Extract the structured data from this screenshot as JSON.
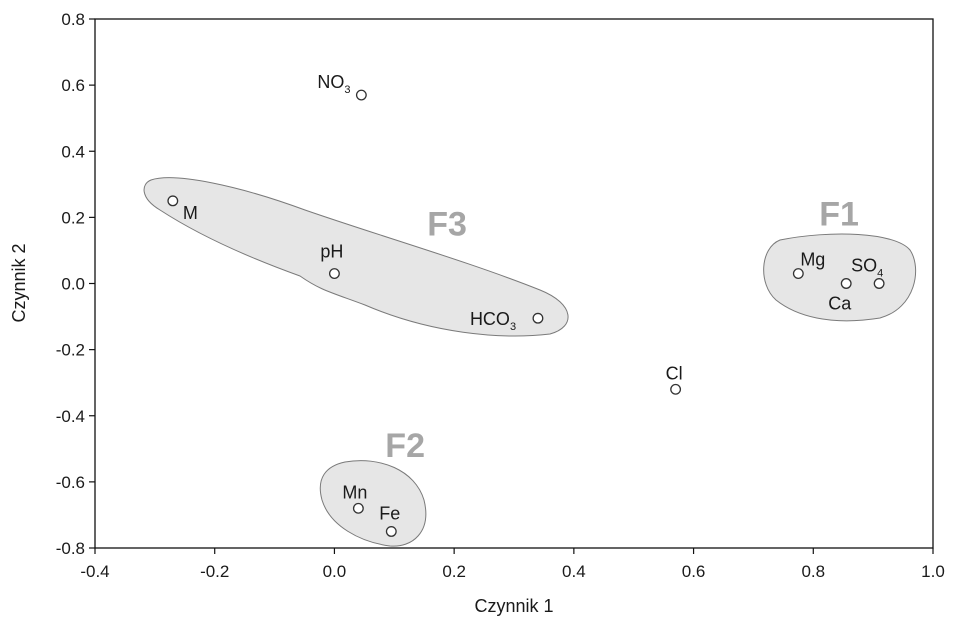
{
  "chart_data": {
    "type": "scatter",
    "xlabel": "Czynnik 1",
    "ylabel": "Czynnik 2",
    "xlim": [
      -0.4,
      1.0
    ],
    "ylim": [
      -0.8,
      0.8
    ],
    "xticks": [
      "-0.4",
      "-0.2",
      "0.0",
      "0.2",
      "0.4",
      "0.6",
      "0.8",
      "1.0"
    ],
    "yticks": [
      "0.8",
      "0.6",
      "0.4",
      "0.2",
      "0.0",
      "-0.2",
      "-0.4",
      "-0.6",
      "-0.8"
    ],
    "grid": false,
    "points": [
      {
        "label": "NO",
        "sub": "3",
        "x": 0.045,
        "y": 0.57
      },
      {
        "label": "M",
        "sub": "",
        "x": -0.27,
        "y": 0.25
      },
      {
        "label": "pH",
        "sub": "",
        "x": 0.0,
        "y": 0.03
      },
      {
        "label": "HCO",
        "sub": "3",
        "x": 0.34,
        "y": -0.105
      },
      {
        "label": "Mg",
        "sub": "",
        "x": 0.775,
        "y": 0.03
      },
      {
        "label": "Ca",
        "sub": "",
        "x": 0.855,
        "y": 0.0
      },
      {
        "label": "SO",
        "sub": "4",
        "x": 0.91,
        "y": 0.0
      },
      {
        "label": "Cl",
        "sub": "",
        "x": 0.57,
        "y": -0.32
      },
      {
        "label": "Mn",
        "sub": "",
        "x": 0.04,
        "y": -0.68
      },
      {
        "label": "Fe",
        "sub": "",
        "x": 0.095,
        "y": -0.75
      }
    ],
    "groups": [
      {
        "name": "F1",
        "members": [
          "Mg",
          "Ca",
          "SO4"
        ]
      },
      {
        "name": "F2",
        "members": [
          "Mn",
          "Fe"
        ]
      },
      {
        "name": "F3",
        "members": [
          "M",
          "pH",
          "HCO3"
        ]
      }
    ]
  }
}
